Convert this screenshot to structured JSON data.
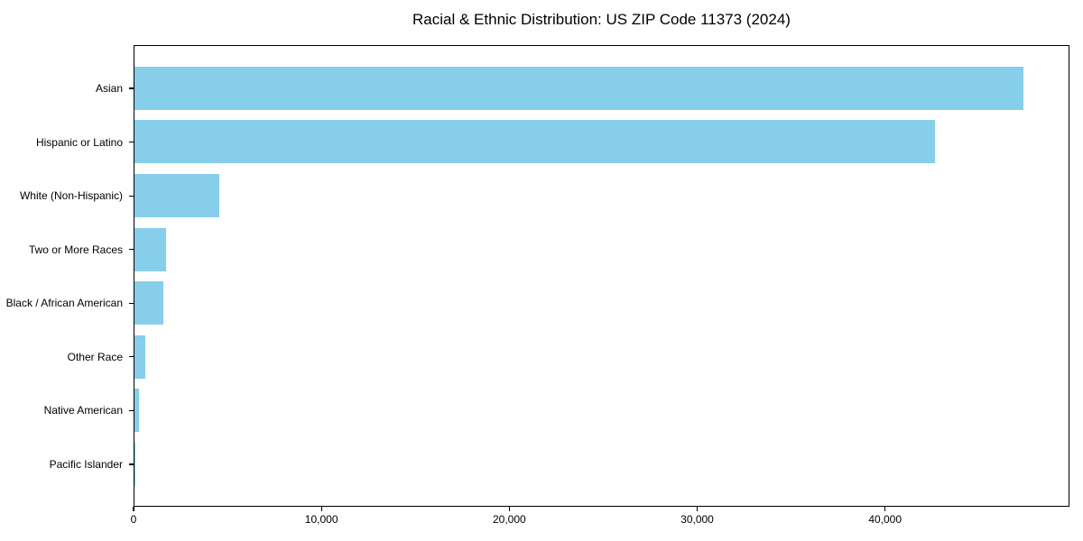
{
  "page": {
    "background_color": "#ffffff"
  },
  "chart_data": {
    "type": "bar",
    "orientation": "horizontal",
    "title": "Racial & Ethnic Distribution: US ZIP Code 11373 (2024)",
    "categories": [
      "Asian",
      "Hispanic or Latino",
      "White (Non-Hispanic)",
      "Two or More Races",
      "Black / African American",
      "Other Race",
      "Native American",
      "Pacific Islander"
    ],
    "values": [
      47300,
      42600,
      4500,
      1680,
      1530,
      600,
      250,
      40
    ],
    "bar_color": "#87CEEB",
    "axis_color": "#000000",
    "text_color": "#000000",
    "xlabel": "",
    "ylabel": "",
    "xlim": [
      0,
      49700
    ],
    "x_ticks": [
      0,
      10000,
      20000,
      30000,
      40000
    ],
    "x_tick_labels": [
      "0",
      "10,000",
      "20,000",
      "30,000",
      "40,000"
    ],
    "grid": false,
    "legend": null
  }
}
